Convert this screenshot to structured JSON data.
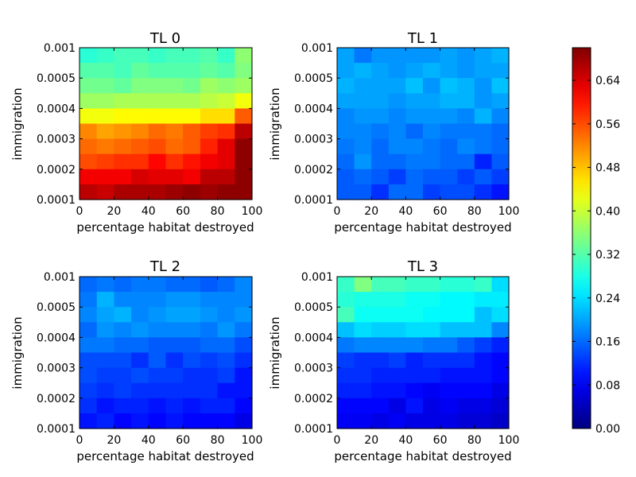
{
  "colormap": {
    "name": "jet",
    "range": [
      0.0,
      0.7
    ],
    "tick_values": [
      0.0,
      0.08,
      0.16,
      0.24,
      0.32,
      0.4,
      0.48,
      0.56,
      0.64
    ],
    "tick_labels": [
      "0.00",
      "0.08",
      "0.16",
      "0.24",
      "0.32",
      "0.40",
      "0.48",
      "0.56",
      "0.64"
    ]
  },
  "chart_data": [
    {
      "type": "heatmap",
      "title": "TL 0",
      "xlabel": "percentage habitat destroyed",
      "ylabel": "immigration",
      "xlim": [
        0,
        100
      ],
      "x_ticks": [
        "0",
        "20",
        "40",
        "60",
        "80",
        "100"
      ],
      "y_ticks": [
        "0.0001",
        "0.0002",
        "0.0003",
        "0.0004",
        "0.0005",
        "0.001"
      ],
      "values": [
        [
          0.29,
          0.3,
          0.31,
          0.31,
          0.3,
          0.31,
          0.31,
          0.32,
          0.3,
          0.36
        ],
        [
          0.32,
          0.32,
          0.31,
          0.33,
          0.32,
          0.32,
          0.32,
          0.33,
          0.32,
          0.35
        ],
        [
          0.34,
          0.34,
          0.33,
          0.35,
          0.35,
          0.35,
          0.34,
          0.37,
          0.36,
          0.37
        ],
        [
          0.37,
          0.37,
          0.38,
          0.38,
          0.38,
          0.38,
          0.38,
          0.39,
          0.4,
          0.43
        ],
        [
          0.43,
          0.43,
          0.44,
          0.44,
          0.44,
          0.44,
          0.44,
          0.46,
          0.46,
          0.55
        ],
        [
          0.52,
          0.5,
          0.51,
          0.52,
          0.54,
          0.53,
          0.55,
          0.57,
          0.58,
          0.66
        ],
        [
          0.54,
          0.53,
          0.54,
          0.55,
          0.56,
          0.54,
          0.55,
          0.59,
          0.63,
          0.69
        ],
        [
          0.56,
          0.57,
          0.58,
          0.58,
          0.61,
          0.58,
          0.6,
          0.62,
          0.63,
          0.69
        ],
        [
          0.62,
          0.62,
          0.62,
          0.64,
          0.63,
          0.63,
          0.62,
          0.66,
          0.66,
          0.69
        ],
        [
          0.66,
          0.65,
          0.67,
          0.67,
          0.67,
          0.68,
          0.69,
          0.68,
          0.69,
          0.69
        ]
      ]
    },
    {
      "type": "heatmap",
      "title": "TL 1",
      "xlabel": "percentage habitat destroyed",
      "ylabel": "immigration",
      "xlim": [
        0,
        100
      ],
      "x_ticks": [
        "0",
        "20",
        "40",
        "60",
        "80",
        "100"
      ],
      "y_ticks": [
        "0.0001",
        "0.0002",
        "0.0003",
        "0.0004",
        "0.0005",
        "0.001"
      ],
      "values": [
        [
          0.2,
          0.17,
          0.19,
          0.19,
          0.19,
          0.19,
          0.2,
          0.19,
          0.2,
          0.21
        ],
        [
          0.2,
          0.21,
          0.2,
          0.19,
          0.2,
          0.21,
          0.2,
          0.19,
          0.2,
          0.2
        ],
        [
          0.21,
          0.2,
          0.2,
          0.2,
          0.22,
          0.19,
          0.22,
          0.21,
          0.19,
          0.22
        ],
        [
          0.2,
          0.2,
          0.2,
          0.19,
          0.2,
          0.2,
          0.21,
          0.21,
          0.19,
          0.2
        ],
        [
          0.18,
          0.19,
          0.19,
          0.18,
          0.19,
          0.19,
          0.19,
          0.18,
          0.21,
          0.18
        ],
        [
          0.18,
          0.18,
          0.17,
          0.18,
          0.16,
          0.18,
          0.17,
          0.17,
          0.17,
          0.16
        ],
        [
          0.17,
          0.18,
          0.16,
          0.18,
          0.18,
          0.17,
          0.16,
          0.18,
          0.17,
          0.16
        ],
        [
          0.16,
          0.19,
          0.16,
          0.16,
          0.17,
          0.17,
          0.16,
          0.16,
          0.11,
          0.15
        ],
        [
          0.15,
          0.16,
          0.15,
          0.13,
          0.16,
          0.15,
          0.15,
          0.13,
          0.15,
          0.13
        ],
        [
          0.15,
          0.15,
          0.12,
          0.16,
          0.16,
          0.13,
          0.14,
          0.14,
          0.12,
          0.1
        ]
      ]
    },
    {
      "type": "heatmap",
      "title": "TL 2",
      "xlabel": "percentage habitat destroyed",
      "ylabel": "immigration",
      "xlim": [
        0,
        100
      ],
      "x_ticks": [
        "0",
        "20",
        "40",
        "60",
        "80",
        "100"
      ],
      "y_ticks": [
        "0.0001",
        "0.0002",
        "0.0003",
        "0.0004",
        "0.0005",
        "0.001"
      ],
      "values": [
        [
          0.16,
          0.17,
          0.16,
          0.17,
          0.17,
          0.16,
          0.16,
          0.15,
          0.16,
          0.18
        ],
        [
          0.17,
          0.21,
          0.18,
          0.18,
          0.18,
          0.19,
          0.19,
          0.18,
          0.18,
          0.18
        ],
        [
          0.18,
          0.2,
          0.21,
          0.18,
          0.19,
          0.2,
          0.2,
          0.19,
          0.18,
          0.19
        ],
        [
          0.16,
          0.19,
          0.18,
          0.19,
          0.18,
          0.18,
          0.18,
          0.17,
          0.19,
          0.17
        ],
        [
          0.17,
          0.17,
          0.16,
          0.16,
          0.15,
          0.15,
          0.15,
          0.16,
          0.16,
          0.14
        ],
        [
          0.14,
          0.14,
          0.14,
          0.12,
          0.15,
          0.12,
          0.14,
          0.13,
          0.14,
          0.12
        ],
        [
          0.14,
          0.13,
          0.13,
          0.14,
          0.13,
          0.13,
          0.12,
          0.12,
          0.13,
          0.1
        ],
        [
          0.13,
          0.12,
          0.13,
          0.12,
          0.12,
          0.12,
          0.12,
          0.12,
          0.1,
          0.1
        ],
        [
          0.12,
          0.1,
          0.11,
          0.11,
          0.1,
          0.11,
          0.1,
          0.11,
          0.11,
          0.09
        ],
        [
          0.1,
          0.11,
          0.09,
          0.1,
          0.09,
          0.1,
          0.09,
          0.09,
          0.09,
          0.07
        ]
      ]
    },
    {
      "type": "heatmap",
      "title": "TL 3",
      "xlabel": "percentage habitat destroyed",
      "ylabel": "immigration",
      "xlim": [
        0,
        100
      ],
      "x_ticks": [
        "0",
        "20",
        "40",
        "60",
        "80",
        "100"
      ],
      "y_ticks": [
        "0.0001",
        "0.0002",
        "0.0003",
        "0.0004",
        "0.0005",
        "0.001"
      ],
      "values": [
        [
          0.3,
          0.35,
          0.31,
          0.31,
          0.3,
          0.3,
          0.29,
          0.29,
          0.3,
          0.24
        ],
        [
          0.29,
          0.28,
          0.28,
          0.28,
          0.27,
          0.27,
          0.26,
          0.26,
          0.25,
          0.25
        ],
        [
          0.31,
          0.27,
          0.27,
          0.27,
          0.27,
          0.26,
          0.26,
          0.26,
          0.22,
          0.24
        ],
        [
          0.22,
          0.24,
          0.23,
          0.23,
          0.24,
          0.24,
          0.22,
          0.22,
          0.22,
          0.18
        ],
        [
          0.17,
          0.18,
          0.18,
          0.18,
          0.18,
          0.17,
          0.17,
          0.15,
          0.13,
          0.11
        ],
        [
          0.13,
          0.12,
          0.12,
          0.13,
          0.11,
          0.12,
          0.12,
          0.12,
          0.1,
          0.09
        ],
        [
          0.12,
          0.12,
          0.11,
          0.11,
          0.11,
          0.11,
          0.1,
          0.1,
          0.1,
          0.09
        ],
        [
          0.11,
          0.11,
          0.1,
          0.1,
          0.09,
          0.08,
          0.09,
          0.09,
          0.09,
          0.07
        ],
        [
          0.09,
          0.09,
          0.09,
          0.07,
          0.1,
          0.07,
          0.08,
          0.07,
          0.07,
          0.06
        ],
        [
          0.08,
          0.08,
          0.07,
          0.08,
          0.07,
          0.07,
          0.07,
          0.06,
          0.06,
          0.05
        ]
      ]
    }
  ]
}
